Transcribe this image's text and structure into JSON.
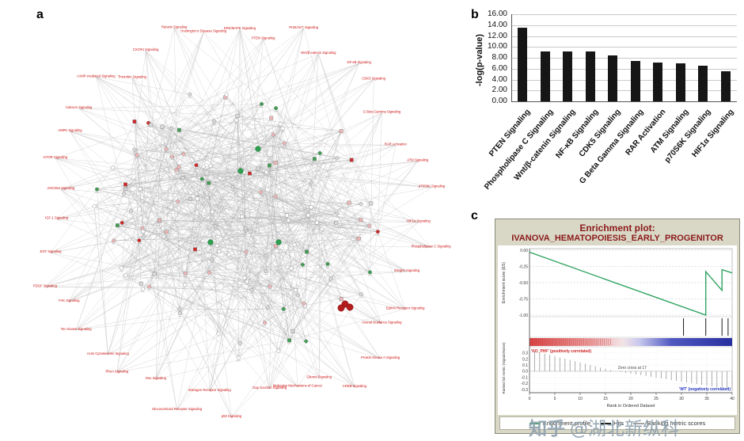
{
  "figure": {
    "panel_a_label": "a",
    "panel_b_label": "b",
    "panel_c_label": "c"
  },
  "watermark": {
    "brand": "知乎",
    "handle": "@湖北新纵科"
  },
  "network": {
    "description": "Dense IPA-style gene interaction network; red/pink = up-regulated, green = down-regulated nodes; red pathway labels around the periphery",
    "edge_color": "#8f8f8f",
    "label_color": "#cc1111",
    "node_palette": {
      "up": "#cf2a2a",
      "up_light": "#efb6b6",
      "down": "#3f9e52",
      "neutral": "#d9d9d9"
    },
    "peripheral_labels": [
      "ERK/MAPK Signaling",
      "PTEN Signaling",
      "PI3K/AKT Signaling",
      "Wnt/β-catenin Signaling",
      "NF-κB Signaling",
      "CDK5 Signaling",
      "G Beta Gamma Signaling",
      "RAR Activation",
      "ATM Signaling",
      "p70S6K Signaling",
      "HIF1α Signaling",
      "Phospholipase C Signaling",
      "Integrin Signaling",
      "Ephrin Receptor Signaling",
      "Axonal Guidance Signaling",
      "Protein Kinase A Signaling",
      "CREB Signaling",
      "Glioma Signaling",
      "Molecular Mechanisms of Cancer",
      "Gap Junction Signaling",
      "p53 Signaling",
      "Estrogen Receptor Signaling",
      "Glucocorticoid Receptor Signaling",
      "Rac Signaling",
      "RhoA Signaling",
      "Actin Cytoskeleton Signaling",
      "Tec Kinase Signaling",
      "FAK Signaling",
      "PDGF Signaling",
      "EGF Signaling",
      "IGF-1 Signaling",
      "JAK/Stat Signaling",
      "mTOR Signaling",
      "AMPK Signaling",
      "Calcium Signaling",
      "cAMP-mediated Signaling",
      "Thrombin Signaling",
      "CXCR4 Signaling",
      "Relaxin Signaling",
      "Huntington's Disease Signaling"
    ]
  },
  "chart_data": [
    {
      "id": "pathway-enrichment-bars",
      "type": "bar",
      "title": "",
      "xlabel": "",
      "ylabel": "-log(p-value)",
      "ylim": [
        0,
        16
      ],
      "ytick_step": 2,
      "ytick_format_decimals": 2,
      "grid": true,
      "bar_color": "#161616",
      "categories": [
        "PTEN Signaling",
        "Phospholipase C Signaling",
        "Wnt/β-catenin Signaling",
        "NF-κB Signaling",
        "CDK5 Signaling",
        "G Beta Gamma Signaling",
        "RAR Activation",
        "ATM Signaling",
        "p70S6K Signaling",
        "HIF1α Signaling"
      ],
      "values": [
        13.5,
        9.2,
        9.2,
        9.2,
        8.5,
        7.4,
        7.2,
        7.0,
        6.5,
        5.5
      ]
    },
    {
      "id": "gsea-enrichment-plot",
      "type": "line",
      "title_line1": "Enrichment plot:",
      "title_line2": "IVANOVA_HEMATOPOIESIS_EARLY_PROGENITOR",
      "es_axis": {
        "label": "Enrichment score (ES)",
        "ticks": [
          0.0,
          -0.25,
          -0.5,
          -0.75,
          -1.0
        ]
      },
      "es_curve_points": [
        [
          0,
          -0.03
        ],
        [
          87,
          -1.0
        ],
        [
          87,
          -0.33
        ],
        [
          95,
          -0.62
        ],
        [
          95,
          -0.3
        ],
        [
          100,
          -0.35
        ]
      ],
      "hit_positions_pct": [
        76,
        87,
        95,
        98
      ],
      "phenotype_pos_label": "'KO_PHF' (positively correlated)",
      "zero_cross_label": "Zero cross at 17",
      "phenotype_neg_label": "'WT' (negatively correlated)",
      "metric_axis": {
        "label": "Ranked list metric (Signal2Noise)",
        "ticks": [
          0.3,
          0.2,
          0.1,
          0.0,
          -0.1,
          -0.2,
          -0.3
        ]
      },
      "metric_values": [
        0.35,
        0.329,
        0.309,
        0.288,
        0.268,
        0.247,
        0.226,
        0.206,
        0.185,
        0.165,
        0.144,
        0.123,
        0.103,
        0.082,
        0.062,
        0.041,
        0.021,
        0,
        -0.013,
        -0.026,
        -0.039,
        -0.052,
        -0.065,
        -0.078,
        -0.091,
        -0.104,
        -0.117,
        -0.13,
        -0.143,
        -0.157,
        -0.17,
        -0.183,
        -0.196,
        -0.209,
        -0.222,
        -0.235,
        -0.248,
        -0.261,
        -0.274,
        -0.287,
        -0.3
      ],
      "x_axis": {
        "label": "Rank in Ordered Dataset",
        "ticks": [
          0,
          5,
          10,
          15,
          20,
          25,
          30,
          35,
          40
        ],
        "max": 40
      },
      "legend": [
        "Enrichment profile",
        "Hits",
        "Ranking metric scores"
      ],
      "colors": {
        "es_line": "#2ea35f",
        "hits": "#1a1a1a",
        "metric_bars": "#a3a3a3",
        "title": "#8b1a1a",
        "pos_text": "#cc2222",
        "neg_text": "#2233bb",
        "band_left": "#d94545",
        "band_right": "#2830a0"
      }
    }
  ]
}
